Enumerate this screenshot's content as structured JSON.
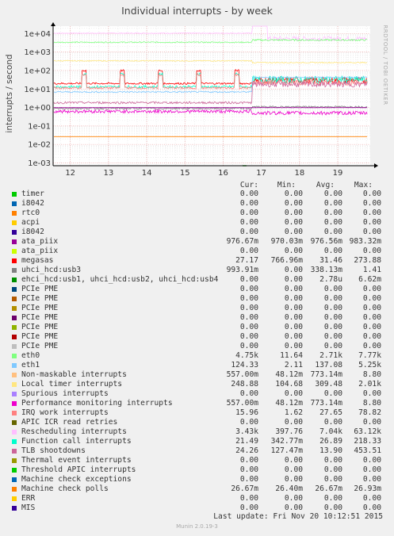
{
  "chart_data": {
    "type": "line",
    "title": "Individual interrupts - by week",
    "ylabel": "interrupts / second",
    "yscale": "log",
    "y_ticks": [
      "1e-03",
      "1e-02",
      "1e-01",
      "1e+00",
      "1e+01",
      "1e+02",
      "1e+03",
      "1e+04"
    ],
    "x_ticks": [
      "12",
      "13",
      "14",
      "15",
      "16",
      "17",
      "18",
      "19"
    ],
    "x_range": [
      11.55,
      19.85
    ],
    "y_range_log10": [
      -3.15,
      4.4
    ],
    "grid": true,
    "legend": "bottom"
  },
  "watermark": "RRDTOOL / TOBI OETIKER",
  "legend_header": {
    "cur": "Cur:",
    "min": "Min:",
    "avg": "Avg:",
    "max": "Max:"
  },
  "colors": {
    "background": "#f0f0f0",
    "plot_area": "#ffffff",
    "grid_major": "#e8a0a0",
    "grid_minor": "#e4e4e4"
  },
  "series": [
    {
      "name": "timer",
      "color": "#00cc00",
      "cur": "0.00",
      "min": "0.00",
      "avg": "0.00",
      "max": "0.00"
    },
    {
      "name": "i8042",
      "color": "#0066b3",
      "cur": "0.00",
      "min": "0.00",
      "avg": "0.00",
      "max": "0.00"
    },
    {
      "name": "rtc0",
      "color": "#ff8000",
      "cur": "0.00",
      "min": "0.00",
      "avg": "0.00",
      "max": "0.00"
    },
    {
      "name": "acpi",
      "color": "#ffcc00",
      "cur": "0.00",
      "min": "0.00",
      "avg": "0.00",
      "max": "0.00"
    },
    {
      "name": "i8042",
      "color": "#330099",
      "cur": "0.00",
      "min": "0.00",
      "avg": "0.00",
      "max": "0.00"
    },
    {
      "name": "ata_piix",
      "color": "#990099",
      "cur": "976.67m",
      "min": "970.03m",
      "avg": "976.56m",
      "max": "983.32m"
    },
    {
      "name": "ata_piix",
      "color": "#ccff00",
      "cur": "0.00",
      "min": "0.00",
      "avg": "0.00",
      "max": "0.00"
    },
    {
      "name": "megasas",
      "color": "#ff0000",
      "cur": "27.17",
      "min": "766.96m",
      "avg": "31.46",
      "max": "273.88"
    },
    {
      "name": "uhci_hcd:usb3",
      "color": "#808080",
      "cur": "993.91m",
      "min": "0.00",
      "avg": "338.13m",
      "max": "1.41"
    },
    {
      "name": "ehci_hcd:usb1, uhci_hcd:usb2, uhci_hcd:usb4",
      "color": "#008f00",
      "cur": "0.00",
      "min": "0.00",
      "avg": "2.78u",
      "max": "6.62m"
    },
    {
      "name": "PCIe PME",
      "color": "#00487d",
      "cur": "0.00",
      "min": "0.00",
      "avg": "0.00",
      "max": "0.00"
    },
    {
      "name": "PCIe PME",
      "color": "#b35a00",
      "cur": "0.00",
      "min": "0.00",
      "avg": "0.00",
      "max": "0.00"
    },
    {
      "name": "PCIe PME",
      "color": "#b38f00",
      "cur": "0.00",
      "min": "0.00",
      "avg": "0.00",
      "max": "0.00"
    },
    {
      "name": "PCIe PME",
      "color": "#6b006b",
      "cur": "0.00",
      "min": "0.00",
      "avg": "0.00",
      "max": "0.00"
    },
    {
      "name": "PCIe PME",
      "color": "#8fb300",
      "cur": "0.00",
      "min": "0.00",
      "avg": "0.00",
      "max": "0.00"
    },
    {
      "name": "PCIe PME",
      "color": "#b30000",
      "cur": "0.00",
      "min": "0.00",
      "avg": "0.00",
      "max": "0.00"
    },
    {
      "name": "PCIe PME",
      "color": "#bebebe",
      "cur": "0.00",
      "min": "0.00",
      "avg": "0.00",
      "max": "0.00"
    },
    {
      "name": "eth0",
      "color": "#80ff80",
      "cur": "4.75k",
      "min": "11.64",
      "avg": "2.71k",
      "max": "7.77k"
    },
    {
      "name": "eth1",
      "color": "#80c9ff",
      "cur": "124.33",
      "min": "2.11",
      "avg": "137.08",
      "max": "5.25k"
    },
    {
      "name": "Non-maskable interrupts",
      "color": "#ffc080",
      "cur": "557.00m",
      "min": "48.12m",
      "avg": "773.14m",
      "max": "8.80"
    },
    {
      "name": "Local timer interrupts",
      "color": "#ffe680",
      "cur": "248.88",
      "min": "104.68",
      "avg": "309.48",
      "max": "2.01k"
    },
    {
      "name": "Spurious interrupts",
      "color": "#aa80ff",
      "cur": "0.00",
      "min": "0.00",
      "avg": "0.00",
      "max": "0.00"
    },
    {
      "name": "Performance monitoring interrupts",
      "color": "#ee00cc",
      "cur": "557.00m",
      "min": "48.12m",
      "avg": "773.14m",
      "max": "8.80"
    },
    {
      "name": "IRQ work interrupts",
      "color": "#ff8080",
      "cur": "15.96",
      "min": "1.62",
      "avg": "27.65",
      "max": "78.82"
    },
    {
      "name": "APIC ICR read retries",
      "color": "#666600",
      "cur": "0.00",
      "min": "0.00",
      "avg": "0.00",
      "max": "0.00"
    },
    {
      "name": "Rescheduling interrupts",
      "color": "#ffbfff",
      "cur": "3.43k",
      "min": "397.76",
      "avg": "7.04k",
      "max": "63.12k"
    },
    {
      "name": "Function call interrupts",
      "color": "#00ffcc",
      "cur": "21.49",
      "min": "342.77m",
      "avg": "26.89",
      "max": "218.33"
    },
    {
      "name": "TLB shootdowns",
      "color": "#cc6699",
      "cur": "24.26",
      "min": "127.47m",
      "avg": "13.90",
      "max": "453.51"
    },
    {
      "name": "Thermal event interrupts",
      "color": "#999900",
      "cur": "0.00",
      "min": "0.00",
      "avg": "0.00",
      "max": "0.00"
    },
    {
      "name": "Threshold APIC interrupts",
      "color": "#00cc00",
      "cur": "0.00",
      "min": "0.00",
      "avg": "0.00",
      "max": "0.00"
    },
    {
      "name": "Machine check exceptions",
      "color": "#0066b3",
      "cur": "0.00",
      "min": "0.00",
      "avg": "0.00",
      "max": "0.00"
    },
    {
      "name": "Machine check polls",
      "color": "#ff8000",
      "cur": "26.67m",
      "min": "26.40m",
      "avg": "26.67m",
      "max": "26.93m"
    },
    {
      "name": "ERR",
      "color": "#ffcc00",
      "cur": "0.00",
      "min": "0.00",
      "avg": "0.00",
      "max": "0.00"
    },
    {
      "name": "MIS",
      "color": "#330099",
      "cur": "0.00",
      "min": "0.00",
      "avg": "0.00",
      "max": "0.00"
    }
  ],
  "footer": "Last update:  Fri Nov 20 10:12:51 2015",
  "version": "Munin 2.0.19-3"
}
